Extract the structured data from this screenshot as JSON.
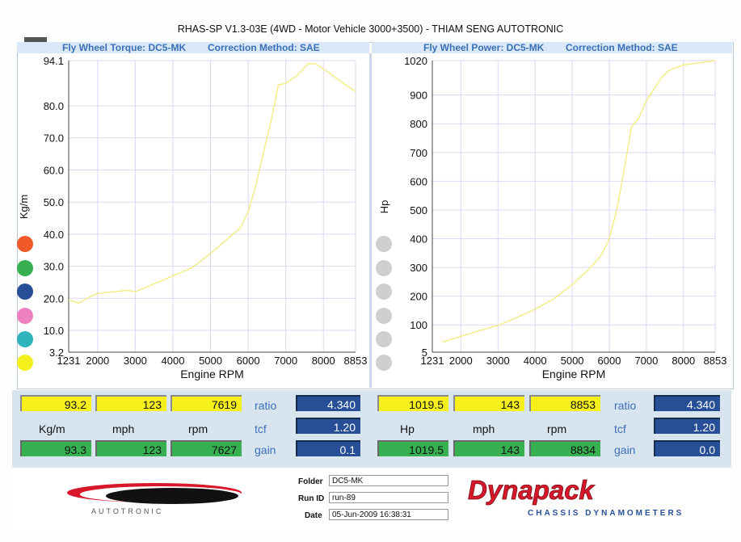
{
  "title": "RHAS-SP V1.3-03E  (4WD - Motor Vehicle 3000+3500) - THIAM SENG AUTOTRONIC",
  "colors": {
    "curve": "#f4ec80",
    "header_bg": "#d9e8f6",
    "header_text": "#3a6fb8",
    "box_yellow": "#f5ef1c",
    "box_green": "#36b050",
    "box_blue": "#274f98",
    "grid": "#ddd6f2",
    "dot_colors": [
      "#f05a2a",
      "#36b050",
      "#274f98",
      "#ee82c0",
      "#2fb3bd",
      "#f5ef1c"
    ],
    "dot_gray": "#cfcfcf"
  },
  "left_panel": {
    "header_left": "Fly Wheel Torque: DC5-MK",
    "header_right": "Correction Method: SAE"
  },
  "right_panel": {
    "header_left": "Fly Wheel Power: DC5-MK",
    "header_right": "Correction Method: SAE"
  },
  "chart_data": [
    {
      "type": "line",
      "title": "Fly Wheel Torque: DC5-MK",
      "xlabel": "Engine RPM",
      "ylabel": "Kg/m",
      "xlim": [
        1231,
        8853
      ],
      "ylim": [
        3.2,
        94.1
      ],
      "x_ticks": [
        1231,
        2000,
        3000,
        4000,
        5000,
        6000,
        7000,
        8000,
        8853
      ],
      "y_ticks": [
        "94.1",
        "80.0",
        "70.0",
        "60.0",
        "50.0",
        "40.0",
        "30.0",
        "20.0",
        "10.0",
        "3.2"
      ],
      "y_tick_values": [
        94.1,
        80,
        70,
        60,
        50,
        40,
        30,
        20,
        10,
        3.2
      ],
      "grid": true,
      "series": [
        {
          "x": [
            1231,
            1500,
            1800,
            2000,
            2400,
            2800,
            3000,
            3500,
            4000,
            4500,
            5000,
            5500,
            5800,
            6000,
            6200,
            6400,
            6600,
            6700,
            6800,
            7000,
            7300,
            7600,
            7800,
            8000,
            8300,
            8600,
            8853
          ],
          "y": [
            19.5,
            18.5,
            20.5,
            21.5,
            22.0,
            22.5,
            22.0,
            24.5,
            27.0,
            29.5,
            34.0,
            39.0,
            42.0,
            47.0,
            55.0,
            65.0,
            75.0,
            80.5,
            86.5,
            87.0,
            89.5,
            93.2,
            93.0,
            91.5,
            89.0,
            86.5,
            84.5
          ]
        }
      ]
    },
    {
      "type": "line",
      "title": "Fly Wheel Power: DC5-MK",
      "xlabel": "Engine RPM",
      "ylabel": "Hp",
      "xlim": [
        1231,
        8853
      ],
      "ylim": [
        5,
        1020
      ],
      "x_ticks": [
        1231,
        2000,
        3000,
        4000,
        5000,
        6000,
        7000,
        8000,
        8853
      ],
      "y_ticks": [
        "1020",
        "900",
        "800",
        "700",
        "600",
        "500",
        "400",
        "300",
        "200",
        "100",
        "5"
      ],
      "y_tick_values": [
        1020,
        900,
        800,
        700,
        600,
        500,
        400,
        300,
        200,
        100,
        5
      ],
      "grid": true,
      "series": [
        {
          "x": [
            1500,
            2000,
            2500,
            3000,
            3500,
            4000,
            4500,
            5000,
            5500,
            5800,
            6000,
            6200,
            6400,
            6600,
            6800,
            7000,
            7200,
            7400,
            7600,
            7800,
            8000,
            8300,
            8600,
            8853
          ],
          "y": [
            40,
            60,
            80,
            98,
            125,
            155,
            190,
            240,
            300,
            345,
            400,
            500,
            640,
            790,
            820,
            880,
            920,
            960,
            985,
            995,
            1005,
            1010,
            1015,
            1019.5
          ]
        }
      ]
    }
  ],
  "readouts": {
    "left": {
      "yellow": [
        "93.2",
        "123",
        "7619"
      ],
      "units": [
        "Kg/m",
        "mph",
        "rpm"
      ],
      "green": [
        "93.3",
        "123",
        "7627"
      ],
      "labels": [
        "ratio",
        "tcf",
        "gain"
      ],
      "blue": [
        "4.340",
        "1.20",
        "0.1"
      ]
    },
    "right": {
      "yellow": [
        "1019.5",
        "143",
        "8853"
      ],
      "units": [
        "Hp",
        "mph",
        "rpm"
      ],
      "green": [
        "1019.5",
        "143",
        "8834"
      ],
      "labels": [
        "ratio",
        "tcf",
        "gain"
      ],
      "blue": [
        "4.340",
        "1.20",
        "0.0"
      ]
    }
  },
  "info": {
    "folder_label": "Folder",
    "folder_value": "DC5-MK",
    "runid_label": "Run ID",
    "runid_value": "run-89",
    "date_label": "Date",
    "date_value": "05-Jun-2009  16:38:31"
  },
  "logos": {
    "autotronic_text": "AUTOTRONIC",
    "dynapack_text": "Dynapack",
    "dynapack_sub": "CHASSIS DYNAMOMETERS"
  }
}
